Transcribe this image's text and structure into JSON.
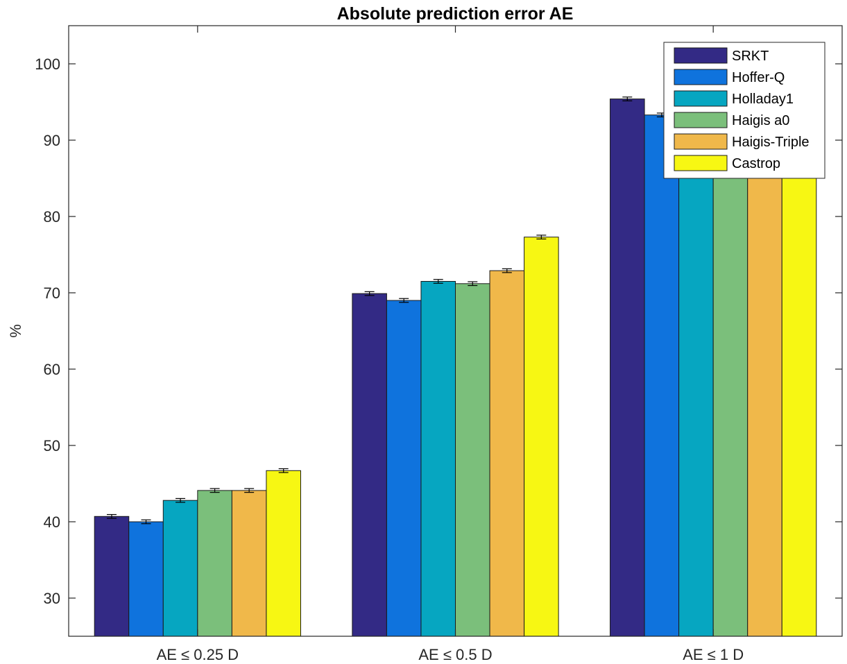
{
  "chart_data": {
    "type": "bar",
    "title": "Absolute prediction error AE",
    "xlabel": "",
    "ylabel": "%",
    "ylim": [
      25,
      105
    ],
    "yticks": [
      30,
      40,
      50,
      60,
      70,
      80,
      90,
      100
    ],
    "categories": [
      "AE ≤ 0.25 D",
      "AE ≤ 0.5 D",
      "AE ≤ 1 D"
    ],
    "grid": false,
    "legend_position": "top-right",
    "error_bars": true,
    "series": [
      {
        "name": "SRKT",
        "color": "#332a85",
        "values": [
          40.7,
          69.9,
          95.4
        ],
        "errors": [
          0.25,
          0.25,
          0.25
        ]
      },
      {
        "name": "Hoffer-Q",
        "color": "#0f73dd",
        "values": [
          40.0,
          69.0,
          93.3
        ],
        "errors": [
          0.25,
          0.25,
          0.25
        ]
      },
      {
        "name": "Holladay1",
        "color": "#06a6c1",
        "values": [
          42.8,
          71.5,
          92.4
        ],
        "errors": [
          0.25,
          0.25,
          0.25
        ]
      },
      {
        "name": "Haigis a0",
        "color": "#7bbf7b",
        "values": [
          44.1,
          71.2,
          92.8
        ],
        "errors": [
          0.25,
          0.25,
          0.25
        ]
      },
      {
        "name": "Haigis-Triple",
        "color": "#f0b84a",
        "values": [
          44.1,
          72.9,
          93.5
        ],
        "errors": [
          0.25,
          0.25,
          0.25
        ]
      },
      {
        "name": "Castrop",
        "color": "#f7f713",
        "values": [
          46.7,
          77.3,
          95.0
        ],
        "errors": [
          0.25,
          0.25,
          0.25
        ]
      }
    ]
  }
}
